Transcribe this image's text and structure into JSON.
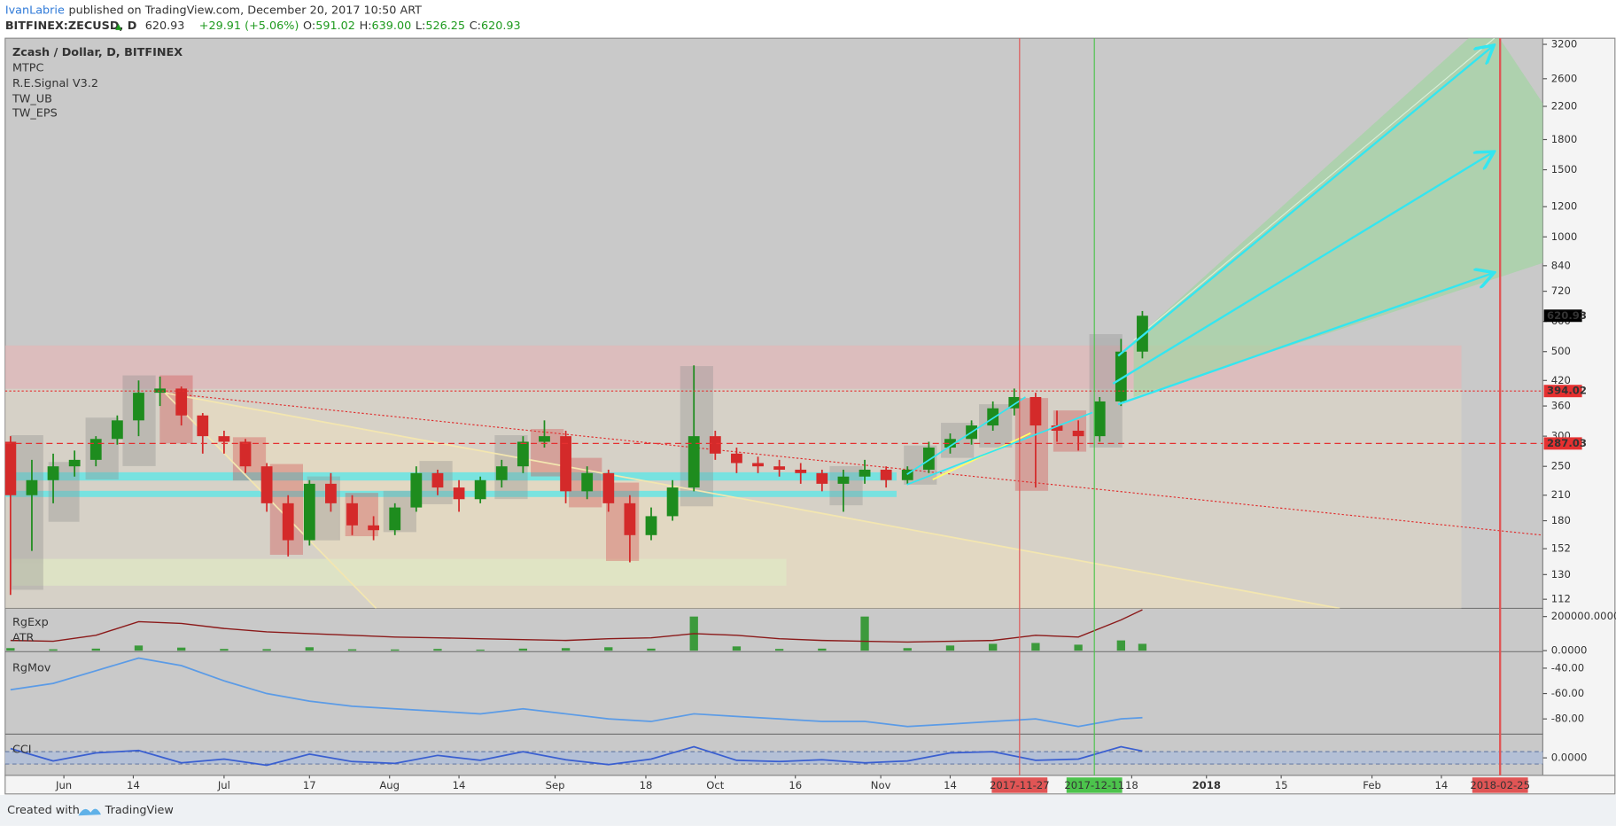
{
  "header": {
    "site_user": "IvanLabrie",
    "published": "published on TradingView.com, December 20, 2017 10:50 ART",
    "symbol": "BITFINEX:ZECUSD, D",
    "last": "620.93",
    "change": "+29.91 (+5.06%)",
    "ohlc": [
      {
        "label": "O:",
        "value": "591.02"
      },
      {
        "label": "H:",
        "value": "639.00"
      },
      {
        "label": "L:",
        "value": "526.25"
      },
      {
        "label": "C:",
        "value": "620.93"
      }
    ]
  },
  "footer": {
    "created_with": "Created with",
    "brand": "TradingView"
  },
  "chart_data": [
    {
      "type": "candlestick",
      "title": "Zcash / Dollar, D, BITFINEX",
      "studies": [
        "MTPC",
        "R.E.Signal V3.2",
        "TW_UB",
        "TW_EPS"
      ],
      "x": [
        "2017-05-22",
        "2017-05-26",
        "2017-05-30",
        "2017-06-03",
        "2017-06-07",
        "2017-06-11",
        "2017-06-15",
        "2017-06-19",
        "2017-06-23",
        "2017-06-27",
        "2017-07-01",
        "2017-07-05",
        "2017-07-09",
        "2017-07-13",
        "2017-07-17",
        "2017-07-21",
        "2017-07-25",
        "2017-07-29",
        "2017-08-02",
        "2017-08-06",
        "2017-08-10",
        "2017-08-14",
        "2017-08-18",
        "2017-08-22",
        "2017-08-26",
        "2017-08-30",
        "2017-09-03",
        "2017-09-07",
        "2017-09-11",
        "2017-09-15",
        "2017-09-19",
        "2017-09-23",
        "2017-09-27",
        "2017-10-01",
        "2017-10-05",
        "2017-10-09",
        "2017-10-13",
        "2017-10-17",
        "2017-10-21",
        "2017-10-25",
        "2017-10-29",
        "2017-11-02",
        "2017-11-06",
        "2017-11-10",
        "2017-11-14",
        "2017-11-18",
        "2017-11-22",
        "2017-11-26",
        "2017-11-30",
        "2017-12-04",
        "2017-12-08",
        "2017-12-12",
        "2017-12-16",
        "2017-12-20"
      ],
      "open": [
        290,
        210,
        230,
        250,
        260,
        295,
        330,
        390,
        400,
        340,
        300,
        290,
        250,
        200,
        160,
        225,
        200,
        175,
        170,
        195,
        240,
        220,
        205,
        230,
        250,
        290,
        300,
        215,
        240,
        200,
        165,
        185,
        220,
        300,
        270,
        255,
        250,
        245,
        240,
        225,
        235,
        245,
        230,
        245,
        280,
        295,
        320,
        355,
        380,
        320,
        310,
        300,
        370,
        500
      ],
      "high": [
        300,
        260,
        270,
        275,
        300,
        340,
        420,
        430,
        405,
        345,
        310,
        295,
        255,
        210,
        230,
        240,
        210,
        185,
        200,
        250,
        245,
        230,
        235,
        260,
        300,
        330,
        310,
        250,
        245,
        210,
        195,
        230,
        460,
        310,
        280,
        265,
        260,
        255,
        245,
        245,
        260,
        250,
        250,
        290,
        305,
        330,
        370,
        400,
        390,
        350,
        330,
        380,
        540,
        639
      ],
      "low": [
        115,
        150,
        200,
        235,
        250,
        285,
        300,
        360,
        320,
        270,
        270,
        240,
        190,
        145,
        155,
        190,
        165,
        160,
        165,
        190,
        210,
        190,
        200,
        220,
        240,
        280,
        200,
        205,
        190,
        140,
        160,
        180,
        215,
        260,
        240,
        240,
        235,
        225,
        215,
        190,
        225,
        220,
        225,
        240,
        270,
        285,
        310,
        340,
        220,
        290,
        275,
        290,
        360,
        480
      ],
      "close": [
        210,
        230,
        250,
        260,
        295,
        330,
        390,
        400,
        340,
        300,
        290,
        250,
        200,
        160,
        225,
        200,
        175,
        170,
        195,
        240,
        220,
        205,
        230,
        250,
        290,
        300,
        215,
        240,
        200,
        165,
        185,
        220,
        300,
        270,
        255,
        250,
        245,
        240,
        225,
        235,
        245,
        230,
        245,
        280,
        295,
        320,
        355,
        380,
        320,
        310,
        300,
        370,
        500,
        620.93
      ],
      "up_color": "#1e8c1e",
      "down_color": "#d42a2a",
      "log_scale": true,
      "ylim": [
        106,
        3320
      ],
      "yticks": [
        112,
        130,
        152,
        180,
        210,
        250,
        300,
        360,
        420,
        500,
        600,
        720,
        840,
        1000,
        1200,
        1500,
        1800,
        2200,
        2600,
        3200
      ],
      "xlim": [
        "2017-05-21",
        "2018-03-05"
      ],
      "xticks": [
        {
          "value": "2017-06-01",
          "label": "Jun"
        },
        {
          "value": "2017-06-14",
          "label": "14"
        },
        {
          "value": "2017-07-01",
          "label": "Jul"
        },
        {
          "value": "2017-07-17",
          "label": "17"
        },
        {
          "value": "2017-08-01",
          "label": "Aug"
        },
        {
          "value": "2017-08-14",
          "label": "14"
        },
        {
          "value": "2017-09-01",
          "label": "Sep"
        },
        {
          "value": "2017-09-18",
          "label": "18"
        },
        {
          "value": "2017-10-01",
          "label": "Oct"
        },
        {
          "value": "2017-10-16",
          "label": "16"
        },
        {
          "value": "2017-11-01",
          "label": "Nov"
        },
        {
          "value": "2017-11-14",
          "label": "14"
        },
        {
          "value": "2017-12-18",
          "label": "18"
        },
        {
          "value": "2018-01-01",
          "label": "2018"
        },
        {
          "value": "2018-01-15",
          "label": "15"
        },
        {
          "value": "2018-02-01",
          "label": "Feb"
        },
        {
          "value": "2018-02-14",
          "label": "14"
        }
      ],
      "highlight_dates": [
        {
          "date": "2017-11-27",
          "color": "#e05555",
          "width": 1
        },
        {
          "date": "2017-12-11",
          "color": "#4cc34c",
          "width": 1
        },
        {
          "date": "2018-02-25",
          "color": "#e05555",
          "width": 2
        }
      ],
      "price_lines": [
        {
          "value": 394.02,
          "color": "#e53030",
          "dash": "2 2"
        },
        {
          "value": 287.03,
          "color": "#e53030",
          "dash": "6 4"
        }
      ],
      "last_price": {
        "value": 620.93,
        "color": "#000000"
      }
    },
    {
      "type": "bar",
      "x": [
        "2017-05-22",
        "2017-05-30",
        "2017-06-07",
        "2017-06-15",
        "2017-06-23",
        "2017-07-01",
        "2017-07-09",
        "2017-07-17",
        "2017-07-25",
        "2017-08-02",
        "2017-08-10",
        "2017-08-18",
        "2017-08-26",
        "2017-09-03",
        "2017-09-11",
        "2017-09-19",
        "2017-09-27",
        "2017-10-05",
        "2017-10-13",
        "2017-10-21",
        "2017-10-29",
        "2017-11-06",
        "2017-11-14",
        "2017-11-22",
        "2017-11-30",
        "2017-12-08",
        "2017-12-16",
        "2017-12-20"
      ],
      "series": [
        {
          "name": "RgExp",
          "type": "bar",
          "color": "#3c9a3c",
          "values": [
            15000,
            8000,
            12000,
            30000,
            18000,
            10000,
            9000,
            20000,
            8000,
            7000,
            10000,
            6000,
            12000,
            15000,
            20000,
            12000,
            200000,
            25000,
            10000,
            12000,
            200000,
            15000,
            30000,
            40000,
            45000,
            35000,
            60000,
            40000
          ]
        },
        {
          "name": "ATR",
          "type": "line",
          "color": "#8b1a1a",
          "values": [
            60000,
            55000,
            90000,
            170000,
            160000,
            130000,
            110000,
            100000,
            90000,
            80000,
            75000,
            70000,
            65000,
            60000,
            70000,
            75000,
            100000,
            90000,
            70000,
            60000,
            55000,
            50000,
            55000,
            60000,
            90000,
            80000,
            180000,
            240000
          ]
        }
      ],
      "ylim": [
        -6000,
        248000
      ],
      "yticks": [
        {
          "value": 0,
          "label": "0.0000"
        },
        {
          "value": 200000,
          "label": "200000.0000"
        }
      ]
    },
    {
      "type": "line",
      "title": "RgMov",
      "color": "#5b9be6",
      "x": [
        "2017-05-22",
        "2017-05-30",
        "2017-06-07",
        "2017-06-15",
        "2017-06-23",
        "2017-07-01",
        "2017-07-09",
        "2017-07-17",
        "2017-07-25",
        "2017-08-02",
        "2017-08-10",
        "2017-08-18",
        "2017-08-26",
        "2017-09-03",
        "2017-09-11",
        "2017-09-19",
        "2017-09-27",
        "2017-10-05",
        "2017-10-13",
        "2017-10-21",
        "2017-10-29",
        "2017-11-06",
        "2017-11-14",
        "2017-11-22",
        "2017-11-30",
        "2017-12-08",
        "2017-12-16",
        "2017-12-20"
      ],
      "values": [
        -57,
        -52,
        -42,
        -32,
        -38,
        -50,
        -60,
        -66,
        -70,
        -72,
        -74,
        -76,
        -72,
        -76,
        -80,
        -82,
        -76,
        -78,
        -80,
        -82,
        -82,
        -86,
        -84,
        -82,
        -80,
        -86,
        -80,
        -79
      ],
      "ylim": [
        -92,
        -27
      ],
      "yticks": [
        {
          "value": -40,
          "label": "-40.00"
        },
        {
          "value": -60,
          "label": "-60.00"
        },
        {
          "value": -80,
          "label": "-80.00"
        }
      ]
    },
    {
      "type": "line",
      "title": "CCI",
      "color": "#3a5fd0",
      "x": [
        "2017-05-22",
        "2017-05-30",
        "2017-06-07",
        "2017-06-15",
        "2017-06-23",
        "2017-07-01",
        "2017-07-09",
        "2017-07-17",
        "2017-07-25",
        "2017-08-02",
        "2017-08-10",
        "2017-08-18",
        "2017-08-26",
        "2017-09-03",
        "2017-09-11",
        "2017-09-19",
        "2017-09-27",
        "2017-10-05",
        "2017-10-13",
        "2017-10-21",
        "2017-10-29",
        "2017-11-06",
        "2017-11-14",
        "2017-11-22",
        "2017-11-30",
        "2017-12-08",
        "2017-12-16",
        "2017-12-20"
      ],
      "values": [
        150,
        -50,
        80,
        120,
        -80,
        -20,
        -120,
        60,
        -60,
        -90,
        40,
        -40,
        100,
        -30,
        -110,
        -20,
        180,
        -40,
        -60,
        -30,
        -80,
        -50,
        80,
        100,
        -40,
        -20,
        180,
        110
      ],
      "band": [
        -100,
        100
      ],
      "band_color": "#b4c0d6",
      "ylim": [
        -283,
        383
      ],
      "yticks": [
        {
          "value": 0,
          "label": "0.0000"
        }
      ]
    }
  ]
}
